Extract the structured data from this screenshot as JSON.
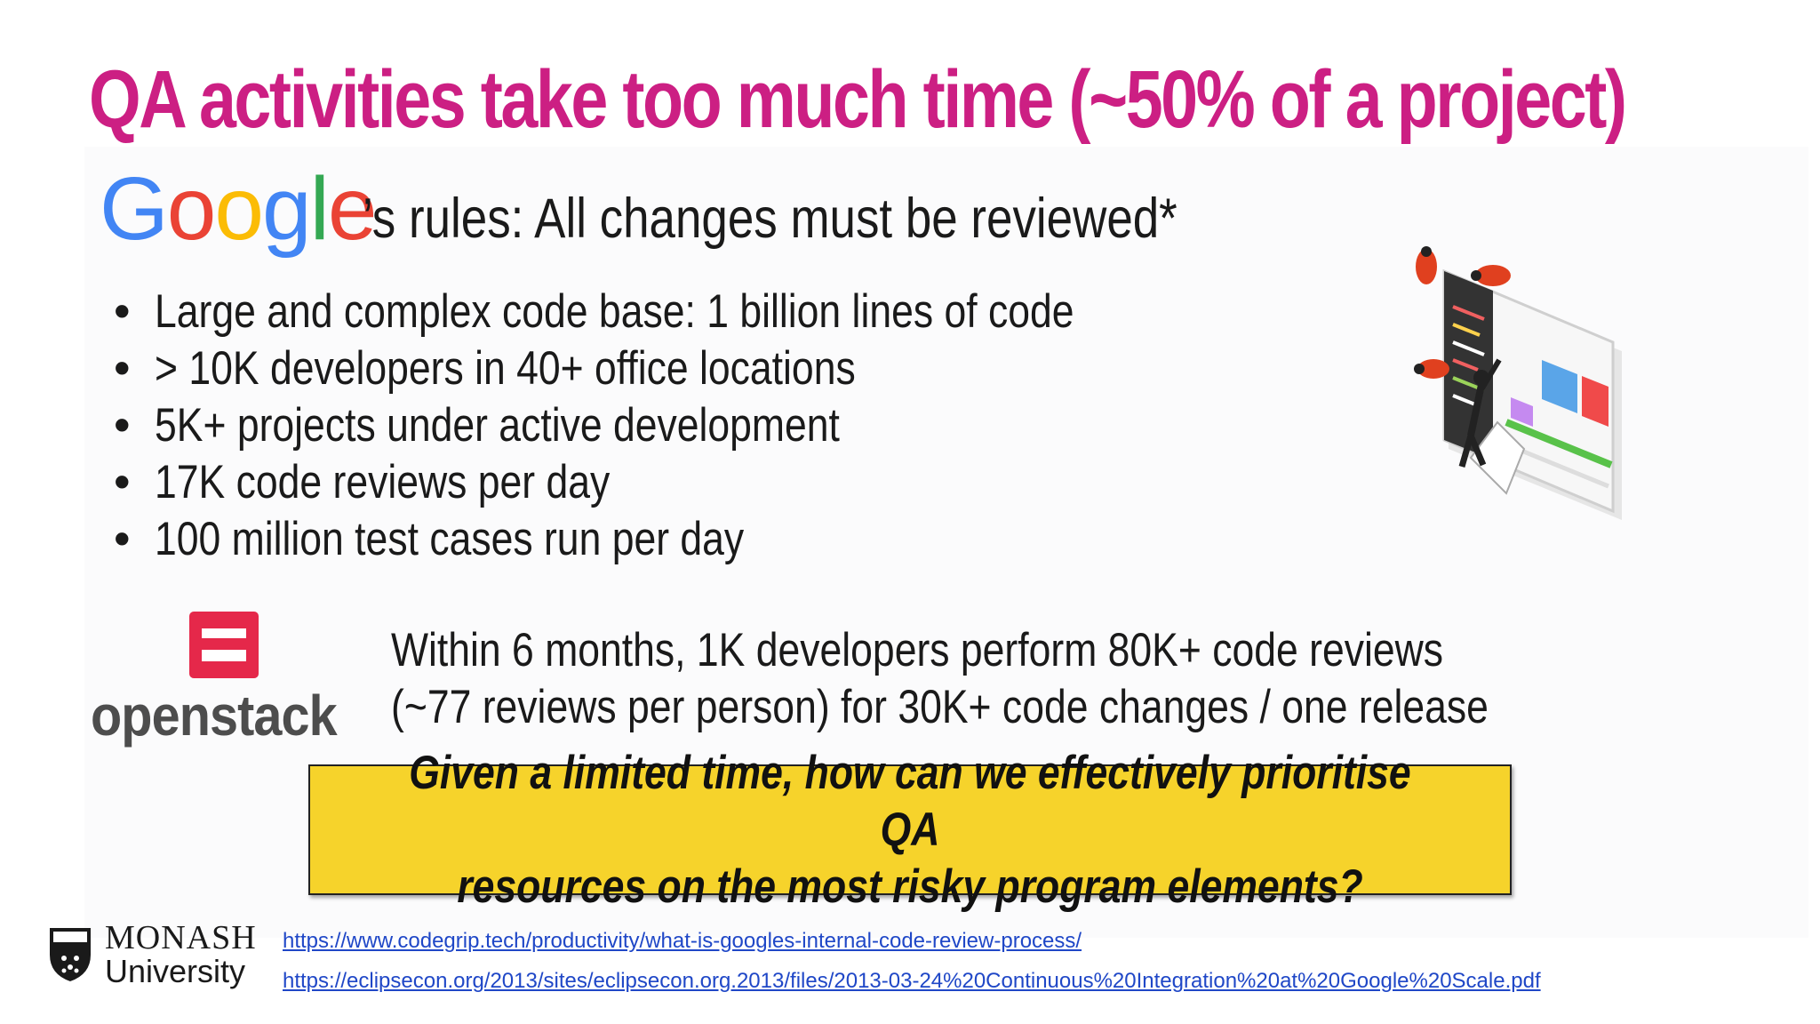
{
  "slide": {
    "title": "QA activities take too much time (~50% of a project)",
    "google": {
      "logo_text": "Google",
      "rules": "’s rules: All changes must be reviewed*"
    },
    "bullets": [
      "Large and complex code base: 1 billion lines of code",
      "> 10K developers in 40+ office locations",
      "5K+ projects under active development",
      "17K code reviews per day",
      "100 million test cases run per day"
    ],
    "openstack": {
      "logo_text": "openstack",
      "line1": "Within 6 months, 1K developers perform 80K+ code reviews",
      "line2": "(~77 reviews per person) for 30K+ code changes / one release"
    },
    "question": {
      "line1": "Given a limited time, how can we effectively prioritise QA",
      "line2": "resources on the most risky program elements?"
    },
    "footer": {
      "university_name": "MONASH",
      "university_sub": "University",
      "links": [
        "https://www.codegrip.tech/productivity/what-is-googles-internal-code-review-process/",
        "https://eclipsecon.org/2013/sites/eclipsecon.org.2013/files/2013-03-24%20Continuous%20Integration%20at%20Google%20Scale.pdf"
      ]
    },
    "colors": {
      "title": "#cc1f83",
      "question_bg": "#f6d32b",
      "link": "#1f47c7",
      "openstack_red": "#e5284a",
      "google_blue": "#4285f4",
      "google_red": "#ea4335",
      "google_yellow": "#fbbc05",
      "google_green": "#34a853"
    }
  }
}
